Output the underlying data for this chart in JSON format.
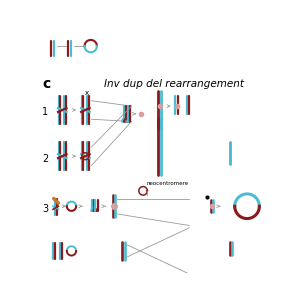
{
  "title": "Inv dup del rearrangement",
  "label_c": "c",
  "cyan": "#4BBCD4",
  "dark_red": "#8B1A1A",
  "orange": "#C8782A",
  "arrow_color": "#999999",
  "pink_dot": "#D4A0A0",
  "bg": "#ffffff",
  "title_fontsize": 7.5,
  "lw_chrom": 1.6,
  "lw_arrow": 0.6
}
